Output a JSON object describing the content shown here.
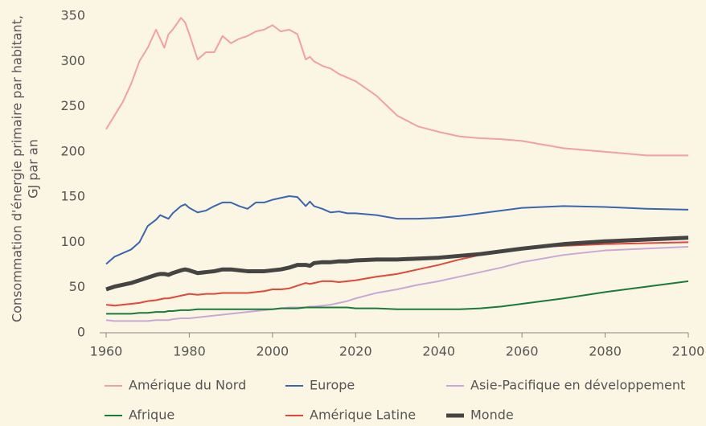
{
  "chart_data": {
    "type": "line",
    "y_label": [
      "Consommation d'énergie primaire par habitant,",
      "GJ par an"
    ],
    "x": [
      1960,
      1962,
      1964,
      1966,
      1968,
      1970,
      1972,
      1973,
      1974,
      1975,
      1976,
      1978,
      1979,
      1980,
      1982,
      1984,
      1986,
      1988,
      1990,
      1992,
      1994,
      1996,
      1998,
      2000,
      2002,
      2004,
      2006,
      2008,
      2009,
      2010,
      2012,
      2014,
      2016,
      2018,
      2020,
      2025,
      2030,
      2035,
      2040,
      2045,
      2050,
      2055,
      2060,
      2070,
      2080,
      2090,
      2100
    ],
    "series": [
      {
        "name": "Amérique du Nord",
        "color": "#f0a0a8",
        "width": 2,
        "values": [
          225,
          240,
          255,
          275,
          300,
          315,
          335,
          325,
          315,
          330,
          335,
          348,
          343,
          330,
          302,
          310,
          310,
          328,
          320,
          325,
          328,
          333,
          335,
          340,
          333,
          335,
          330,
          302,
          305,
          300,
          295,
          292,
          286,
          282,
          278,
          262,
          240,
          228,
          222,
          217,
          215,
          214,
          212,
          204,
          200,
          196,
          196
        ]
      },
      {
        "name": "Europe",
        "color": "#3a66b0",
        "width": 2,
        "values": [
          76,
          84,
          88,
          92,
          100,
          118,
          125,
          130,
          128,
          126,
          132,
          140,
          142,
          138,
          133,
          135,
          140,
          144,
          144,
          140,
          137,
          144,
          144,
          147,
          149,
          151,
          150,
          140,
          145,
          140,
          137,
          133,
          134,
          132,
          132,
          130,
          126,
          126,
          127,
          129,
          132,
          135,
          138,
          140,
          139,
          137,
          136
        ]
      },
      {
        "name": "Asie-Pacifique en développement",
        "color": "#c8a8d8",
        "width": 2,
        "values": [
          14,
          13,
          13,
          13,
          13,
          13,
          14,
          14,
          14,
          14,
          15,
          16,
          16,
          16,
          17,
          18,
          19,
          20,
          21,
          22,
          23,
          24,
          25,
          26,
          27,
          28,
          28,
          28,
          29,
          29,
          30,
          31,
          33,
          35,
          38,
          44,
          48,
          53,
          57,
          62,
          67,
          72,
          78,
          86,
          91,
          93,
          95
        ]
      },
      {
        "name": "Afrique",
        "color": "#1a7a3a",
        "width": 2,
        "values": [
          21,
          21,
          21,
          21,
          22,
          22,
          23,
          23,
          23,
          24,
          24,
          25,
          25,
          25,
          26,
          26,
          26,
          26,
          26,
          26,
          26,
          26,
          26,
          26,
          27,
          27,
          27,
          28,
          28,
          28,
          28,
          28,
          28,
          28,
          27,
          27,
          26,
          26,
          26,
          26,
          27,
          29,
          32,
          38,
          45,
          51,
          57
        ]
      },
      {
        "name": "Amérique Latine",
        "color": "#e0483a",
        "width": 2,
        "values": [
          31,
          30,
          31,
          32,
          33,
          35,
          36,
          37,
          38,
          38,
          39,
          41,
          42,
          43,
          42,
          43,
          43,
          44,
          44,
          44,
          44,
          45,
          46,
          48,
          48,
          49,
          52,
          55,
          54,
          55,
          57,
          57,
          56,
          57,
          58,
          62,
          65,
          70,
          75,
          81,
          86,
          91,
          94,
          96,
          98,
          99,
          100
        ]
      },
      {
        "name": "Monde",
        "color": "#444444",
        "width": 5,
        "values": [
          48,
          51,
          53,
          55,
          58,
          61,
          64,
          65,
          65,
          64,
          66,
          69,
          70,
          69,
          66,
          67,
          68,
          70,
          70,
          69,
          68,
          68,
          68,
          69,
          70,
          72,
          75,
          75,
          74,
          77,
          78,
          78,
          79,
          79,
          80,
          81,
          81,
          82,
          83,
          85,
          87,
          90,
          93,
          98,
          101,
          103,
          105
        ]
      }
    ],
    "xlim": [
      1960,
      2100
    ],
    "xticks": [
      1960,
      1980,
      2000,
      2020,
      2040,
      2060,
      2080,
      2100
    ],
    "ylim": [
      0,
      350
    ],
    "yticks": [
      0,
      50,
      100,
      150,
      200,
      250,
      300,
      350
    ]
  }
}
